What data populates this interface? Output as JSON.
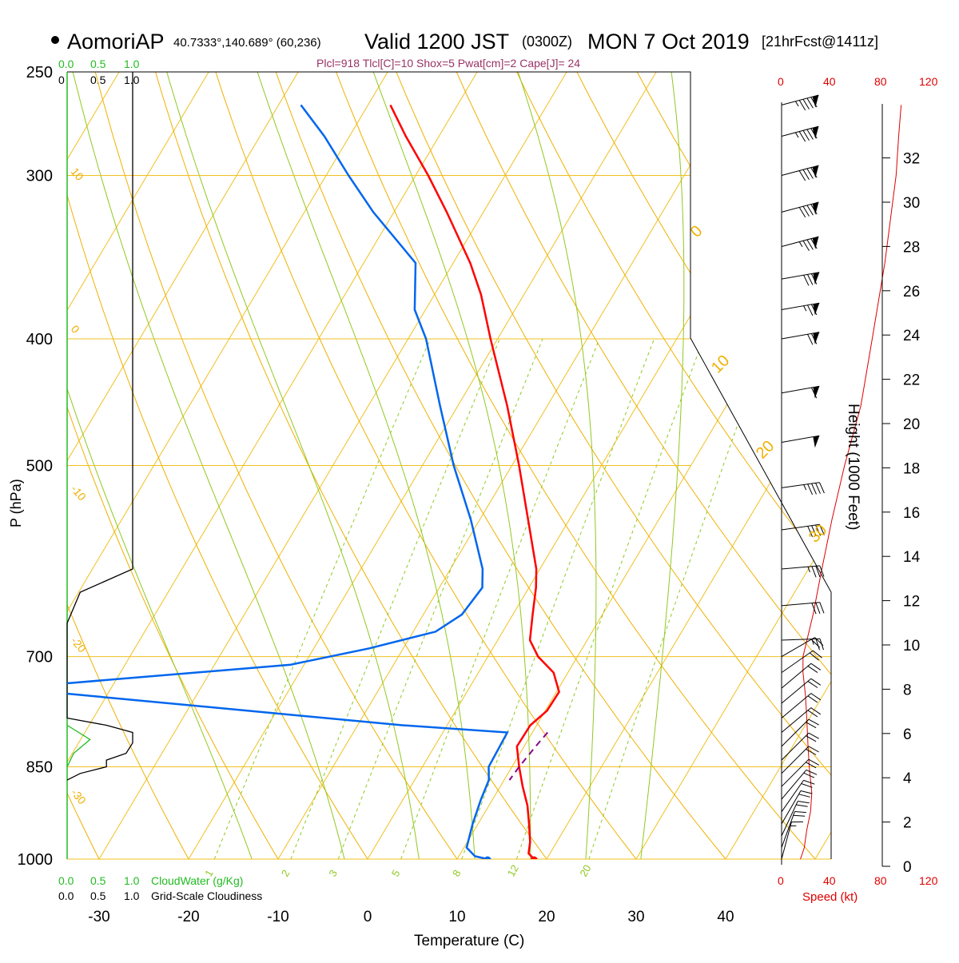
{
  "header": {
    "station": "AomoriAP",
    "coords": "40.7333°,140.689° (60,236)",
    "valid": "Valid 1200 JST",
    "utc": "(0300Z)",
    "date": "MON 7 Oct 2019",
    "fcst": "[21hrFcst@1411z]",
    "indices": "Plcl=918 Tlcl[C]=10 Shox=5 Pwat[cm]=2 Cape[J]= 24"
  },
  "colors": {
    "temperature": "#ff0000",
    "dewpoint": "#0066ee",
    "isotherm_grid": "#f0c020",
    "dry_adiabat": "#f0b000",
    "moist_adiabat": "#90c820",
    "mixing_ratio": "#90c820",
    "cloud_water": "#22bb22",
    "cloudiness": "#000000",
    "parcel": "#880088",
    "speed": "#dd0000",
    "indices_text": "#993366"
  },
  "labels": {
    "pressure_axis": "P (hPa)",
    "temperature_axis": "Temperature (C)",
    "height_axis": "Height (1000 Feet)",
    "speed_axis": "Speed (kt)",
    "cloudwater_legend": "CloudWater (g/Kg)",
    "cloudiness_legend": "Grid-Scale Cloudiness",
    "cloud_scale": [
      "0.0",
      "0.5",
      "1.0"
    ],
    "cloudiness_scale": [
      "0.0",
      "0.5",
      "1.0"
    ],
    "cloud_scale_top": [
      "0.0",
      "0.5",
      "1.0"
    ],
    "cloudiness_scale_top": [
      "0",
      "0.5",
      "1.0"
    ],
    "speed_ticks": [
      "0",
      "40",
      "80",
      "120"
    ],
    "speed_ticks_bottom": [
      "0",
      "40",
      "80",
      "120"
    ]
  },
  "chart_data": {
    "type": "skew-t sounding",
    "pressure_ticks": [
      250,
      300,
      400,
      500,
      700,
      850,
      1000
    ],
    "temperature_ticks": [
      -30,
      -20,
      -10,
      0,
      10,
      20,
      30,
      40
    ],
    "xlim": [
      -34,
      36
    ],
    "ylim_hpa": [
      1000,
      250
    ],
    "height_ticks_kft": [
      0,
      2,
      4,
      6,
      8,
      10,
      12,
      14,
      16,
      18,
      20,
      22,
      24,
      26,
      28,
      30,
      32
    ],
    "theta_labels": [
      "10",
      "0",
      "-10",
      "-20",
      "-30"
    ],
    "theta_labels_right": [
      "0",
      "10",
      "20",
      "30"
    ],
    "mixing_ratio_labels": [
      "1",
      "2",
      "3",
      "5",
      "8",
      "12",
      "20"
    ],
    "temperature_profile": [
      {
        "p": 1000,
        "t": 18.6
      },
      {
        "p": 990,
        "t": 17.6
      },
      {
        "p": 970,
        "t": 17.0
      },
      {
        "p": 940,
        "t": 15.7
      },
      {
        "p": 910,
        "t": 14.3
      },
      {
        "p": 880,
        "t": 12.5
      },
      {
        "p": 850,
        "t": 10.8
      },
      {
        "p": 820,
        "t": 9.2
      },
      {
        "p": 790,
        "t": 9.3
      },
      {
        "p": 770,
        "t": 10.2
      },
      {
        "p": 745,
        "t": 10.3
      },
      {
        "p": 720,
        "t": 8.4
      },
      {
        "p": 700,
        "t": 5.6
      },
      {
        "p": 680,
        "t": 3.6
      },
      {
        "p": 650,
        "t": 2.2
      },
      {
        "p": 620,
        "t": 0.8
      },
      {
        "p": 600,
        "t": -0.4
      },
      {
        "p": 550,
        "t": -4.6
      },
      {
        "p": 500,
        "t": -9.2
      },
      {
        "p": 450,
        "t": -14.5
      },
      {
        "p": 400,
        "t": -20.8
      },
      {
        "p": 370,
        "t": -24.8
      },
      {
        "p": 350,
        "t": -28.1
      },
      {
        "p": 320,
        "t": -34.1
      },
      {
        "p": 300,
        "t": -38.6
      },
      {
        "p": 280,
        "t": -43.7
      },
      {
        "p": 265,
        "t": -47.5
      }
    ],
    "dewpoint_profile": [
      {
        "p": 1000,
        "t": 13.4
      },
      {
        "p": 995,
        "t": 11.8
      },
      {
        "p": 980,
        "t": 10.3
      },
      {
        "p": 940,
        "t": 9.4
      },
      {
        "p": 900,
        "t": 8.7
      },
      {
        "p": 870,
        "t": 8.3
      },
      {
        "p": 850,
        "t": 7.4
      },
      {
        "p": 800,
        "t": 7.2
      },
      {
        "p": 790,
        "t": -5.0
      },
      {
        "p": 740,
        "t": -51.5
      },
      {
        "p": 710,
        "t": -21.5
      },
      {
        "p": 690,
        "t": -13.8
      },
      {
        "p": 670,
        "t": -7.5
      },
      {
        "p": 650,
        "t": -5.7
      },
      {
        "p": 620,
        "t": -5.2
      },
      {
        "p": 600,
        "t": -6.4
      },
      {
        "p": 550,
        "t": -11.0
      },
      {
        "p": 500,
        "t": -16.5
      },
      {
        "p": 450,
        "t": -22.0
      },
      {
        "p": 400,
        "t": -28.0
      },
      {
        "p": 380,
        "t": -31.2
      },
      {
        "p": 350,
        "t": -34.2
      },
      {
        "p": 320,
        "t": -42.3
      },
      {
        "p": 300,
        "t": -47.5
      },
      {
        "p": 280,
        "t": -52.8
      },
      {
        "p": 265,
        "t": -57.5
      }
    ],
    "parcel_profile": [
      {
        "p": 800,
        "t": 11.7
      },
      {
        "p": 820,
        "t": 11.3
      },
      {
        "p": 850,
        "t": 10.8
      },
      {
        "p": 870,
        "t": 10.6
      }
    ],
    "surface_temperature": {
      "p": 1000,
      "t": 18.6
    },
    "surface_dewpoint": {
      "p": 1000,
      "t": 13.4
    },
    "wind_speed_profile": [
      {
        "p": 1000,
        "kt": 15
      },
      {
        "p": 980,
        "kt": 18
      },
      {
        "p": 950,
        "kt": 20
      },
      {
        "p": 920,
        "kt": 23
      },
      {
        "p": 890,
        "kt": 24
      },
      {
        "p": 850,
        "kt": 22
      },
      {
        "p": 820,
        "kt": 21
      },
      {
        "p": 780,
        "kt": 20
      },
      {
        "p": 750,
        "kt": 19
      },
      {
        "p": 720,
        "kt": 17
      },
      {
        "p": 700,
        "kt": 17
      },
      {
        "p": 650,
        "kt": 25
      },
      {
        "p": 600,
        "kt": 32
      },
      {
        "p": 550,
        "kt": 40
      },
      {
        "p": 500,
        "kt": 50
      },
      {
        "p": 450,
        "kt": 63
      },
      {
        "p": 400,
        "kt": 72
      },
      {
        "p": 350,
        "kt": 82
      },
      {
        "p": 300,
        "kt": 91
      },
      {
        "p": 280,
        "kt": 93
      },
      {
        "p": 265,
        "kt": 95
      }
    ],
    "wind_barbs": [
      {
        "p": 265,
        "dir": 255,
        "kt": 95
      },
      {
        "p": 280,
        "dir": 255,
        "kt": 95
      },
      {
        "p": 300,
        "dir": 255,
        "kt": 90
      },
      {
        "p": 320,
        "dir": 255,
        "kt": 88
      },
      {
        "p": 340,
        "dir": 255,
        "kt": 85
      },
      {
        "p": 360,
        "dir": 260,
        "kt": 80
      },
      {
        "p": 380,
        "dir": 260,
        "kt": 75
      },
      {
        "p": 400,
        "dir": 260,
        "kt": 70
      },
      {
        "p": 440,
        "dir": 260,
        "kt": 60
      },
      {
        "p": 480,
        "dir": 260,
        "kt": 50
      },
      {
        "p": 520,
        "dir": 262,
        "kt": 45
      },
      {
        "p": 560,
        "dir": 262,
        "kt": 40
      },
      {
        "p": 600,
        "dir": 265,
        "kt": 35
      },
      {
        "p": 640,
        "dir": 265,
        "kt": 30
      },
      {
        "p": 680,
        "dir": 268,
        "kt": 25
      },
      {
        "p": 700,
        "dir": 240,
        "kt": 20
      },
      {
        "p": 720,
        "dir": 235,
        "kt": 18
      },
      {
        "p": 740,
        "dir": 230,
        "kt": 18
      },
      {
        "p": 760,
        "dir": 230,
        "kt": 18
      },
      {
        "p": 780,
        "dir": 230,
        "kt": 20
      },
      {
        "p": 800,
        "dir": 230,
        "kt": 20
      },
      {
        "p": 820,
        "dir": 225,
        "kt": 20
      },
      {
        "p": 840,
        "dir": 225,
        "kt": 20
      },
      {
        "p": 860,
        "dir": 225,
        "kt": 22
      },
      {
        "p": 880,
        "dir": 225,
        "kt": 22
      },
      {
        "p": 900,
        "dir": 220,
        "kt": 22
      },
      {
        "p": 920,
        "dir": 215,
        "kt": 22
      },
      {
        "p": 940,
        "dir": 210,
        "kt": 20
      },
      {
        "p": 960,
        "dir": 205,
        "kt": 20
      },
      {
        "p": 980,
        "dir": 200,
        "kt": 18
      },
      {
        "p": 1000,
        "dir": 195,
        "kt": 15
      }
    ],
    "cloudiness_profile": [
      {
        "p": 250,
        "v": 1.0
      },
      {
        "p": 540,
        "v": 1.0
      },
      {
        "p": 600,
        "v": 1.0
      },
      {
        "p": 625,
        "v": 0.2
      },
      {
        "p": 660,
        "v": 0.0
      },
      {
        "p": 780,
        "v": 0.0
      },
      {
        "p": 790,
        "v": 0.6
      },
      {
        "p": 800,
        "v": 1.0
      },
      {
        "p": 815,
        "v": 1.0
      },
      {
        "p": 830,
        "v": 0.9
      },
      {
        "p": 840,
        "v": 0.6
      },
      {
        "p": 850,
        "v": 0.6
      },
      {
        "p": 860,
        "v": 0.2
      },
      {
        "p": 870,
        "v": 0.0
      }
    ],
    "cloudwater_profile": [
      {
        "p": 790,
        "v": 0.0
      },
      {
        "p": 810,
        "v": 0.35
      },
      {
        "p": 830,
        "v": 0.1
      },
      {
        "p": 850,
        "v": 0.0
      }
    ]
  }
}
